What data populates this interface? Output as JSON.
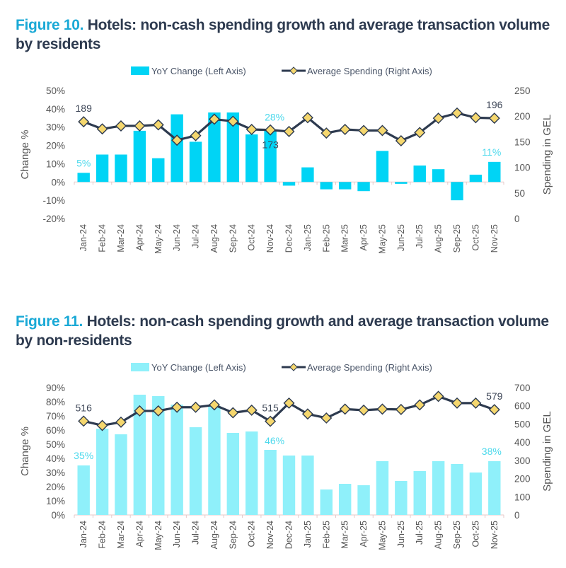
{
  "figures": [
    {
      "title_number": "Figure 10.",
      "title_text": " Hotels: non-cash spending growth and average transaction volume by residents"
    },
    {
      "title_number": "Figure 11.",
      "title_text": " Hotels: non-cash spending growth and average transaction volume by non-residents"
    }
  ],
  "chart_data": [
    {
      "type": "bar+line",
      "title": "Figure 10. Hotels: non-cash spending growth and average transaction volume by residents",
      "categories": [
        "Jan-24",
        "Feb-24",
        "Mar-24",
        "Apr-24",
        "May-24",
        "Jun-24",
        "Jul-24",
        "Aug-24",
        "Sep-24",
        "Oct-24",
        "Nov-24",
        "Dec-24",
        "Jan-25",
        "Feb-25",
        "Mar-25",
        "Apr-25",
        "May-25",
        "Jun-25",
        "Jul-25",
        "Aug-25",
        "Sep-25",
        "Oct-25",
        "Nov-25"
      ],
      "series": [
        {
          "name": "YoY Change (Left Axis)",
          "type": "bar",
          "axis": "left",
          "color": "#00d4f5",
          "values": [
            5,
            15,
            15,
            28,
            13,
            37,
            22,
            38,
            38,
            26,
            28,
            -2,
            8,
            -4,
            -4,
            -5,
            17,
            -1,
            9,
            7,
            -10,
            4,
            11
          ]
        },
        {
          "name": "Average Spending (Right Axis)",
          "type": "line",
          "axis": "right",
          "color": "#2d3a4f",
          "marker_color": "#f5d76e",
          "values": [
            189,
            175,
            181,
            181,
            183,
            153,
            162,
            194,
            190,
            174,
            173,
            170,
            197,
            167,
            174,
            172,
            172,
            152,
            168,
            196,
            206,
            197,
            196
          ]
        }
      ],
      "annotations": [
        {
          "series": 0,
          "index": 0,
          "text": "5%"
        },
        {
          "series": 0,
          "index": 10,
          "text": "28%"
        },
        {
          "series": 0,
          "index": 22,
          "text": "11%"
        },
        {
          "series": 1,
          "index": 0,
          "text": "189"
        },
        {
          "series": 1,
          "index": 10,
          "text": "173"
        },
        {
          "series": 1,
          "index": 22,
          "text": "196"
        }
      ],
      "ylabel": "Change %",
      "y2label": "Spending in GEL",
      "ylim": [
        -20,
        50
      ],
      "yticks": [
        "50%",
        "40%",
        "30%",
        "20%",
        "10%",
        "0%",
        "-10%",
        "-20%"
      ],
      "ytick_values": [
        50,
        40,
        30,
        20,
        10,
        0,
        -10,
        -20
      ],
      "y2lim": [
        0,
        250
      ],
      "y2ticks": [
        "250",
        "200",
        "150",
        "100",
        "50",
        "0"
      ],
      "y2tick_values": [
        250,
        200,
        150,
        100,
        50,
        0
      ],
      "legend": "top-center",
      "grid": false
    },
    {
      "type": "bar+line",
      "title": "Figure 11. Hotels: non-cash spending growth and average transaction volume by non-residents",
      "categories": [
        "Jan-24",
        "Feb-24",
        "Mar-24",
        "Apr-24",
        "May-24",
        "Jun-24",
        "Jul-24",
        "Aug-24",
        "Sep-24",
        "Oct-24",
        "Nov-24",
        "Dec-24",
        "Jan-25",
        "Feb-25",
        "Mar-25",
        "Apr-25",
        "May-25",
        "Jun-25",
        "Jul-25",
        "Aug-25",
        "Sep-25",
        "Oct-25",
        "Nov-25"
      ],
      "series": [
        {
          "name": "YoY Change (Left Axis)",
          "type": "bar",
          "axis": "left",
          "color": "#8ff0fa",
          "values": [
            35,
            61,
            57,
            85,
            84,
            78,
            62,
            77,
            58,
            59,
            46,
            42,
            42,
            18,
            22,
            21,
            38,
            24,
            31,
            38,
            36,
            30,
            38
          ]
        },
        {
          "name": "Average Spending (Right Axis)",
          "type": "line",
          "axis": "right",
          "color": "#2d3a4f",
          "marker_color": "#f5d76e",
          "values": [
            516,
            492,
            510,
            572,
            572,
            592,
            592,
            605,
            562,
            576,
            515,
            615,
            555,
            533,
            582,
            576,
            582,
            580,
            605,
            652,
            615,
            615,
            579
          ]
        }
      ],
      "annotations": [
        {
          "series": 0,
          "index": 0,
          "text": "35%"
        },
        {
          "series": 0,
          "index": 10,
          "text": "46%"
        },
        {
          "series": 0,
          "index": 22,
          "text": "38%"
        },
        {
          "series": 1,
          "index": 0,
          "text": "516"
        },
        {
          "series": 1,
          "index": 10,
          "text": "515"
        },
        {
          "series": 1,
          "index": 22,
          "text": "579"
        }
      ],
      "ylabel": "Change %",
      "y2label": "Spending in GEL",
      "ylim": [
        0,
        90
      ],
      "yticks": [
        "90%",
        "80%",
        "70%",
        "60%",
        "50%",
        "40%",
        "30%",
        "20%",
        "10%",
        "0%"
      ],
      "ytick_values": [
        90,
        80,
        70,
        60,
        50,
        40,
        30,
        20,
        10,
        0
      ],
      "y2lim": [
        0,
        700
      ],
      "y2ticks": [
        "700",
        "600",
        "500",
        "400",
        "300",
        "200",
        "100",
        "0"
      ],
      "y2tick_values": [
        700,
        600,
        500,
        400,
        300,
        200,
        100,
        0
      ],
      "legend": "top-center",
      "grid": false
    }
  ]
}
